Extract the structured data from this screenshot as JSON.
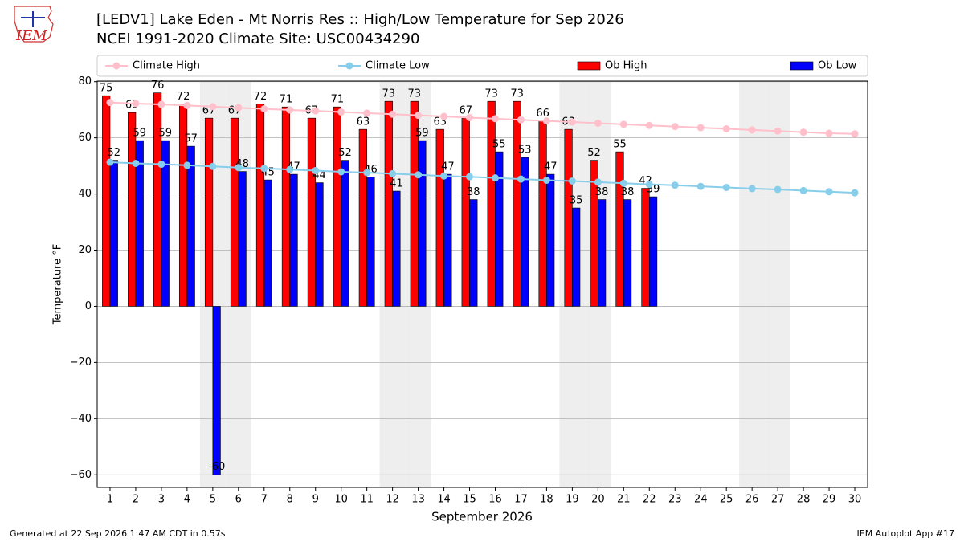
{
  "logo": "IEM",
  "footer_left": "Generated at 22 Sep 2026 1:47 AM CDT in 0.57s",
  "footer_right": "IEM Autoplot App #17",
  "chart_data": {
    "type": "bar",
    "title": "[LEDV1] Lake Eden - Mt Norris Res :: High/Low Temperature for Sep 2026",
    "subtitle": "NCEI 1991-2020 Climate Site: USC00434290",
    "xlabel": "September 2026",
    "ylabel": "Temperature °F",
    "categories": [
      "1",
      "2",
      "3",
      "4",
      "5",
      "6",
      "7",
      "8",
      "9",
      "10",
      "11",
      "12",
      "13",
      "14",
      "15",
      "16",
      "17",
      "18",
      "19",
      "20",
      "21",
      "22",
      "23",
      "24",
      "25",
      "26",
      "27",
      "28",
      "29",
      "30"
    ],
    "shaded_categories": [
      "5",
      "6",
      "12",
      "13",
      "19",
      "20",
      "26",
      "27"
    ],
    "ylim": [
      -64.5,
      80.2
    ],
    "yticks": [
      {
        "value": -60,
        "label": "−60"
      },
      {
        "value": -40,
        "label": "−40"
      },
      {
        "value": -20,
        "label": "−20"
      },
      0,
      20,
      40,
      60,
      80
    ],
    "grid": true,
    "legend": "top",
    "series": [
      {
        "name": "Climate High",
        "type": "line",
        "color": "#ffc0cb",
        "values": [
          72.6,
          72.2,
          71.9,
          71.5,
          71.1,
          70.7,
          70.3,
          69.9,
          69.6,
          69.2,
          68.8,
          68.4,
          68.0,
          67.6,
          67.2,
          66.8,
          66.4,
          66.0,
          65.6,
          65.2,
          64.8,
          64.4,
          64.0,
          63.6,
          63.2,
          62.8,
          62.4,
          62.0,
          61.6,
          61.4
        ]
      },
      {
        "name": "Climate Low",
        "type": "line",
        "color": "#87ceeb",
        "values": [
          51.3,
          50.9,
          50.6,
          50.2,
          49.8,
          49.4,
          49.1,
          48.7,
          48.3,
          47.9,
          47.6,
          47.2,
          46.8,
          46.4,
          46.1,
          45.7,
          45.3,
          44.9,
          44.6,
          44.2,
          43.8,
          43.4,
          43.1,
          42.7,
          42.3,
          41.9,
          41.6,
          41.2,
          40.8,
          40.4
        ]
      },
      {
        "name": "Ob High",
        "type": "bar",
        "color": "#ff0000",
        "values": [
          75,
          69,
          76,
          72,
          67,
          67,
          72,
          71,
          67,
          71,
          63,
          73,
          73,
          63,
          67,
          73,
          73,
          66,
          63,
          52,
          55,
          42,
          null,
          null,
          null,
          null,
          null,
          null,
          null,
          null
        ]
      },
      {
        "name": "Ob Low",
        "type": "bar",
        "color": "#0000ff",
        "values": [
          52,
          59,
          59,
          57,
          -60,
          48,
          45,
          47,
          44,
          52,
          46,
          41,
          59,
          47,
          38,
          55,
          53,
          47,
          35,
          38,
          38,
          39,
          null,
          null,
          null,
          null,
          null,
          null,
          null,
          null
        ]
      }
    ]
  }
}
